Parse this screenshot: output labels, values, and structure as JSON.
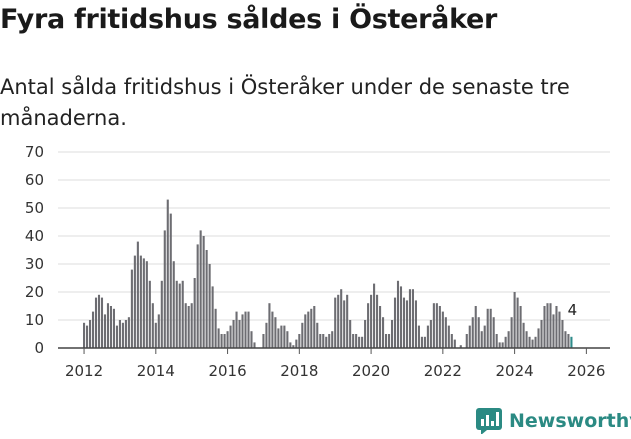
{
  "title": "Fyra fritidshus såldes i Österåker",
  "subtitle": "Antal sålda fritidshus i Österåker under de senaste tre månaderna.",
  "brand": {
    "name": "Newsworthy",
    "color": "#2b8a83"
  },
  "colors": {
    "bar": "#6d6d72",
    "highlight": "#2f8b8a"
  },
  "chart_data": {
    "type": "bar",
    "title": "Fyra fritidshus såldes i Österåker",
    "subtitle": "Antal sålda fritidshus i Österåker under de senaste tre månaderna.",
    "xlabel": "",
    "ylabel": "",
    "ylim": [
      0,
      70
    ],
    "yticks": [
      0,
      10,
      20,
      30,
      40,
      50,
      60,
      70
    ],
    "xticks": [
      "2012",
      "2014",
      "2016",
      "2018",
      "2020",
      "2022",
      "2024",
      "2026"
    ],
    "start_month": "2012-01",
    "grid": true,
    "annotation": "4",
    "values": [
      9,
      8,
      10,
      13,
      18,
      19,
      18,
      12,
      16,
      15,
      14,
      8,
      10,
      9,
      10,
      11,
      28,
      33,
      38,
      33,
      32,
      31,
      24,
      16,
      9,
      12,
      24,
      42,
      53,
      48,
      31,
      24,
      23,
      24,
      16,
      15,
      16,
      25,
      37,
      42,
      40,
      35,
      30,
      22,
      14,
      7,
      5,
      5,
      6,
      8,
      10,
      13,
      10,
      12,
      13,
      13,
      6,
      2,
      0,
      0,
      5,
      9,
      16,
      13,
      11,
      7,
      8,
      8,
      6,
      2,
      1,
      3,
      5,
      9,
      12,
      13,
      14,
      15,
      9,
      5,
      5,
      4,
      5,
      6,
      18,
      19,
      21,
      17,
      19,
      10,
      5,
      5,
      4,
      4,
      10,
      16,
      19,
      23,
      19,
      15,
      11,
      5,
      5,
      10,
      18,
      24,
      22,
      18,
      17,
      21,
      21,
      17,
      8,
      4,
      4,
      8,
      10,
      16,
      16,
      15,
      13,
      11,
      8,
      5,
      3,
      0,
      1,
      0,
      5,
      8,
      11,
      15,
      11,
      6,
      8,
      14,
      14,
      11,
      5,
      2,
      2,
      4,
      6,
      11,
      20,
      18,
      15,
      9,
      6,
      4,
      3,
      4,
      7,
      10,
      15,
      16,
      16,
      12,
      15,
      13,
      10,
      6,
      5,
      4
    ]
  }
}
